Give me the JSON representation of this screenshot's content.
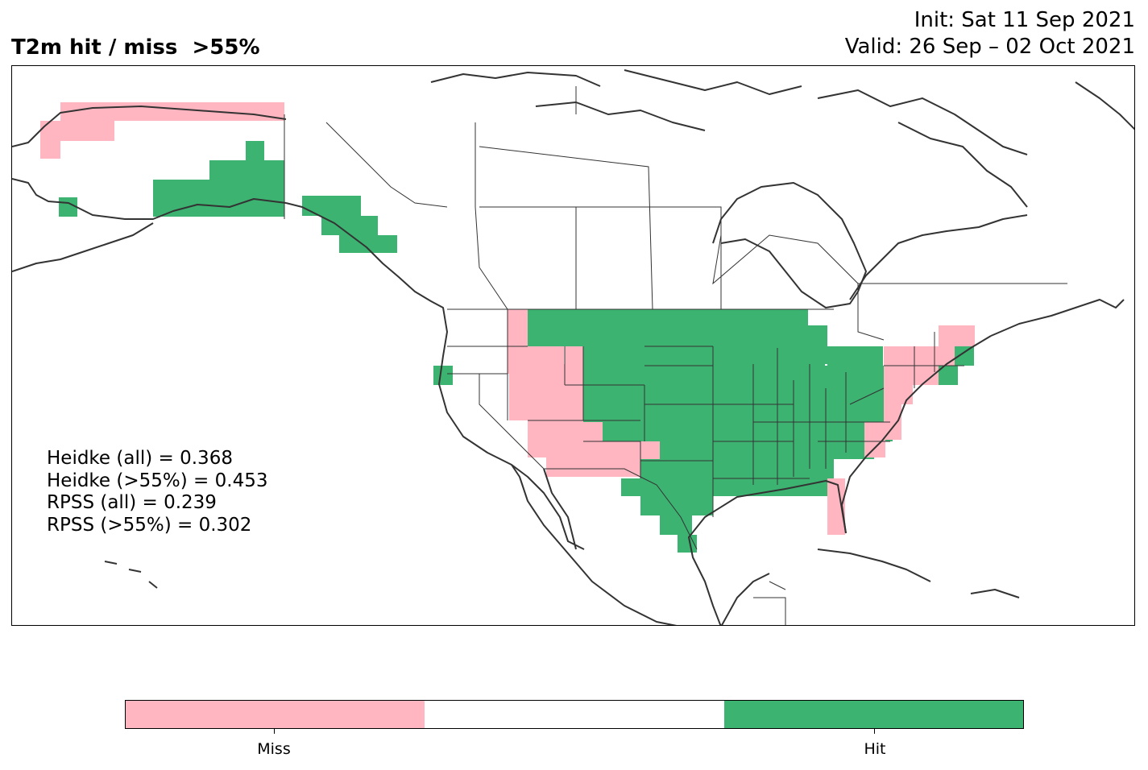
{
  "title": "T2m hit / miss  >55%",
  "init": "Init: Sat 11 Sep 2021",
  "valid": "Valid: 26 Sep – 02 Oct 2021",
  "stats": [
    "Heidke (all) = 0.368",
    "Heidke (>55%) = 0.453",
    "RPSS (all) = 0.239",
    "RPSS (>55%) = 0.302"
  ],
  "legend": {
    "miss_label": "Miss",
    "hit_label": "Hit",
    "colors": {
      "miss": "#ffb6c1",
      "neutral": "#ffffff",
      "hit": "#3cb371"
    }
  },
  "map": {
    "region": "North America",
    "projection": "PlateCarree",
    "line_color": "#333333",
    "hit_regions": [
      "Central Alaska",
      "Southeast Alaska",
      "Northern Plains",
      "Midwest",
      "Texas",
      "Southeast"
    ],
    "miss_regions": [
      "Northwest Alaska",
      "Idaho",
      "Utah",
      "Arizona",
      "New Mexico",
      "Florida",
      "Northeast",
      "Mid-Atlantic"
    ]
  }
}
